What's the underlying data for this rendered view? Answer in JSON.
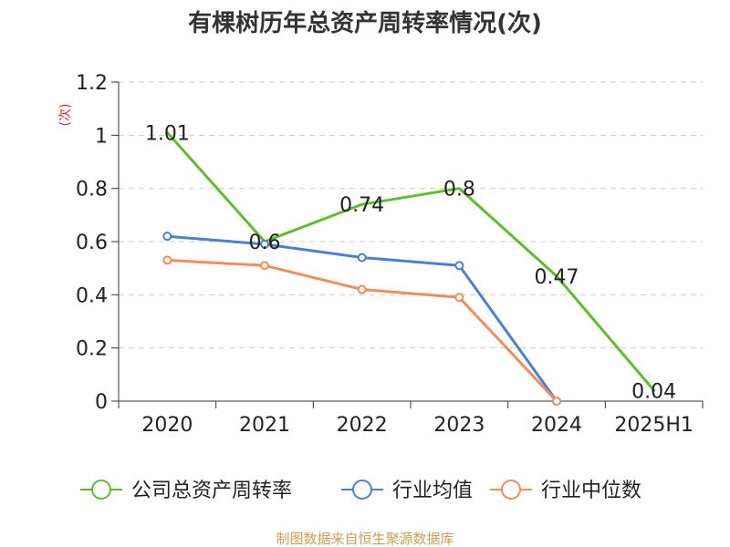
{
  "chart_data": {
    "type": "line",
    "title": "有棵树历年总资产周转率情况(次)",
    "ylabel": "(次)",
    "xlabel": "",
    "categories": [
      "2020",
      "2021",
      "2022",
      "2023",
      "2024",
      "2025H1"
    ],
    "ylim": [
      0,
      1.2
    ],
    "yticks": [
      "0",
      "0.2",
      "0.4",
      "0.6",
      "0.8",
      "1",
      "1.2"
    ],
    "grid": true,
    "legend_position": "bottom",
    "series": [
      {
        "name": "公司总资产周转率",
        "color": "#5cbf2a",
        "values": [
          1.01,
          0.6,
          0.74,
          0.8,
          0.47,
          0.04
        ],
        "labels": [
          "1.01",
          "0.6",
          "0.74",
          "0.8",
          "0.47",
          "0.04"
        ],
        "show_labels": true,
        "show_markers": false
      },
      {
        "name": "行业均值",
        "color": "#4a7fd9",
        "values": [
          0.62,
          0.59,
          0.54,
          0.51,
          0.0,
          null
        ],
        "show_labels": false,
        "show_markers": true
      },
      {
        "name": "行业中位数",
        "color": "#f58b55",
        "values": [
          0.53,
          0.51,
          0.42,
          0.39,
          0.0,
          null
        ],
        "show_labels": false,
        "show_markers": true
      }
    ],
    "colors": {
      "axis": "#333333",
      "grid": "#cccccc",
      "ylabel": "#e02020",
      "source": "#c8a050"
    }
  },
  "source_text": "制图数据来自恒生聚源数据库"
}
